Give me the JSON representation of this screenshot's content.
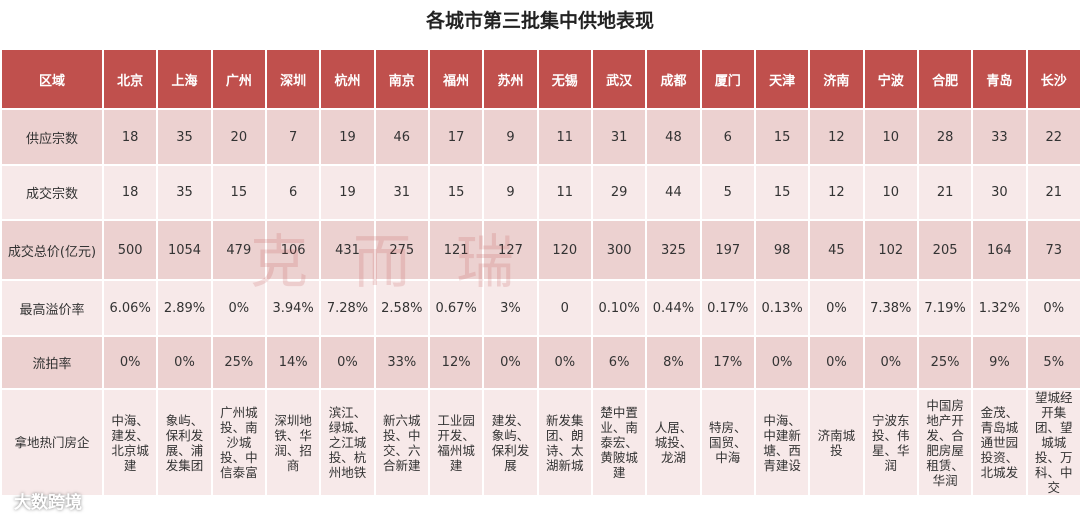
{
  "title": "各城市第三批集中供地表现",
  "table": {
    "header": [
      "区域",
      "北京",
      "上海",
      "广州",
      "深圳",
      "杭州",
      "南京",
      "福州",
      "苏州",
      "无锡",
      "武汉",
      "成都",
      "厦门",
      "天津",
      "济南",
      "宁波",
      "合肥",
      "青岛",
      "长沙"
    ],
    "rows": [
      [
        "供应宗数",
        "18",
        "35",
        "20",
        "7",
        "19",
        "46",
        "17",
        "9",
        "11",
        "31",
        "48",
        "6",
        "15",
        "12",
        "10",
        "28",
        "33",
        "22"
      ],
      [
        "成交宗数",
        "18",
        "35",
        "15",
        "6",
        "19",
        "31",
        "15",
        "9",
        "11",
        "29",
        "44",
        "5",
        "15",
        "12",
        "10",
        "21",
        "30",
        "21"
      ],
      [
        "成交总价(亿元)",
        "500",
        "1054",
        "479",
        "106",
        "431",
        "275",
        "121",
        "127",
        "120",
        "300",
        "325",
        "197",
        "98",
        "45",
        "102",
        "205",
        "164",
        "73"
      ],
      [
        "最高溢价率",
        "6.06%",
        "2.89%",
        "0%",
        "3.94%",
        "7.28%",
        "2.58%",
        "0.67%",
        "3%",
        "0",
        "0.10%",
        "0.44%",
        "0.17%",
        "0.13%",
        "0%",
        "7.38%",
        "7.19%",
        "1.32%",
        "0%"
      ],
      [
        "流拍率",
        "0%",
        "0%",
        "25%",
        "14%",
        "0%",
        "33%",
        "12%",
        "0%",
        "0%",
        "6%",
        "8%",
        "17%",
        "0%",
        "0%",
        "0%",
        "25%",
        "9%",
        "5%"
      ],
      [
        "拿地热门房企",
        "中海、建发、北京城建",
        "象屿、保利发展、浦发集团",
        "广州城投、南沙城投、中信泰富",
        "深圳地铁、华润、招商",
        "滨江、绿城、之江城投、杭州地铁",
        "新六城投、中交、六合新建",
        "工业园开发、福州城建",
        "建发、象屿、保利发展",
        "新发集团、朗诗、太湖新城",
        "楚中置业、南泰宏、黄陂城建",
        "人居、城投、龙湖",
        "特房、国贸、中海",
        "中海、中建新塘、西青建设",
        "济南城投",
        "宁波东投、伟星、华润",
        "中国房地产开发、合肥房屋租赁、华润",
        "金茂、青岛城通世园投资、北城发",
        "望城经开集团、望城城投、万科、中交"
      ]
    ]
  },
  "watermark": "克而瑞",
  "logo": "大数跨境"
}
